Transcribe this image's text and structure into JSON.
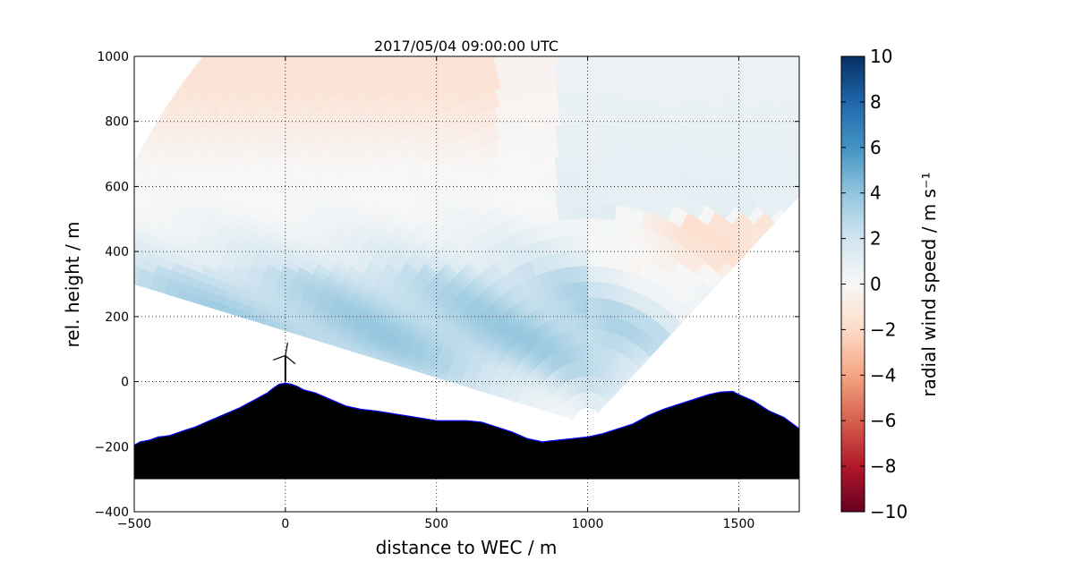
{
  "chart_data": {
    "type": "heatmap",
    "title": "2017/05/04 09:00:00 UTC",
    "xlabel": "distance to WEC / m",
    "ylabel": "rel. height / m",
    "xlim": [
      -500,
      1700
    ],
    "ylim": [
      -400,
      1000
    ],
    "xticks": [
      -500,
      0,
      500,
      1000,
      1500
    ],
    "yticks": [
      -400,
      -200,
      0,
      200,
      400,
      600,
      800,
      1000
    ],
    "xtick_labels": [
      "−500",
      "0",
      "500",
      "1000",
      "1500"
    ],
    "ytick_labels": [
      "−400",
      "−200",
      "0",
      "200",
      "400",
      "600",
      "800",
      "1000"
    ],
    "grid": true,
    "colorbar": {
      "label": "radial wind speed / m s⁻¹",
      "range": [
        -10,
        10
      ],
      "ticks": [
        -10,
        -8,
        -6,
        -4,
        -2,
        0,
        2,
        4,
        6,
        8,
        10
      ],
      "tick_labels": [
        "−10",
        "−8",
        "−6",
        "−4",
        "−2",
        "0",
        "2",
        "4",
        "6",
        "8",
        "10"
      ],
      "colormap": "RdBu",
      "color_stops": [
        "#67001f",
        "#b2182b",
        "#d6604d",
        "#f4a582",
        "#fddbc7",
        "#f7f7f7",
        "#d1e5f0",
        "#92c5de",
        "#4393c3",
        "#2166ac",
        "#053061"
      ]
    },
    "scan": {
      "origin_x": 1000,
      "origin_y": -130,
      "max_range": 1700,
      "start_angle_deg": 164,
      "end_angle_deg": 45,
      "min_range": 50
    },
    "terrain": {
      "fill_color": "#000000",
      "edge_color": "#0000ff",
      "base_y": -300,
      "x": [
        -500,
        -480,
        -450,
        -420,
        -400,
        -380,
        -350,
        -300,
        -250,
        -200,
        -150,
        -120,
        -100,
        -80,
        -60,
        -40,
        -20,
        0,
        20,
        40,
        60,
        80,
        100,
        150,
        200,
        250,
        300,
        400,
        500,
        600,
        650,
        700,
        750,
        800,
        850,
        900,
        950,
        1000,
        1050,
        1100,
        1150,
        1200,
        1250,
        1300,
        1350,
        1400,
        1440,
        1480,
        1500,
        1550,
        1600,
        1650,
        1700
      ],
      "y": [
        -195,
        -185,
        -180,
        -170,
        -168,
        -165,
        -155,
        -140,
        -120,
        -100,
        -80,
        -65,
        -55,
        -45,
        -35,
        -20,
        -8,
        -5,
        -8,
        -15,
        -25,
        -30,
        -35,
        -55,
        -75,
        -85,
        -90,
        -105,
        -120,
        -120,
        -125,
        -140,
        -155,
        -175,
        -185,
        -180,
        -175,
        -170,
        -160,
        -145,
        -130,
        -105,
        -85,
        -70,
        -55,
        -40,
        -32,
        -30,
        -40,
        -60,
        -90,
        -110,
        -145
      ]
    },
    "turbine": {
      "x": 0,
      "hub_height": 80,
      "rotor_radius": 40
    }
  }
}
